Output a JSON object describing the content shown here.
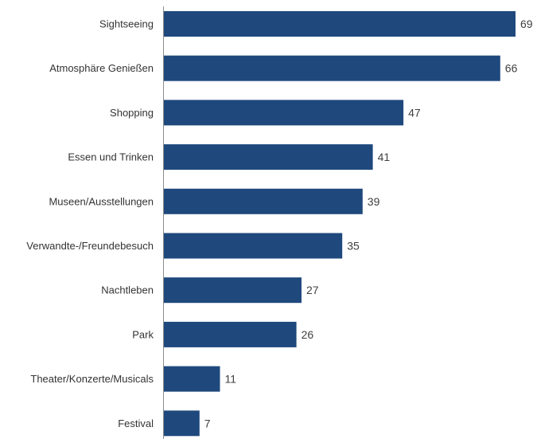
{
  "chart_data": {
    "type": "bar",
    "orientation": "horizontal",
    "categories": [
      "Sightseeing",
      "Atmosphäre Genießen",
      "Shopping",
      "Essen und Trinken",
      "Museen/Ausstellungen",
      "Verwandte-/Freundebesuch",
      "Nachtleben",
      "Park",
      "Theater/Konzerte/Musicals",
      "Festival"
    ],
    "values": [
      69,
      66,
      47,
      41,
      39,
      35,
      27,
      26,
      11,
      7
    ],
    "title": "",
    "xlabel": "",
    "ylabel": "",
    "xlim": [
      0,
      69
    ],
    "grid": false,
    "legend": "none",
    "data_labels": true,
    "bar_color": "#1f497d"
  }
}
